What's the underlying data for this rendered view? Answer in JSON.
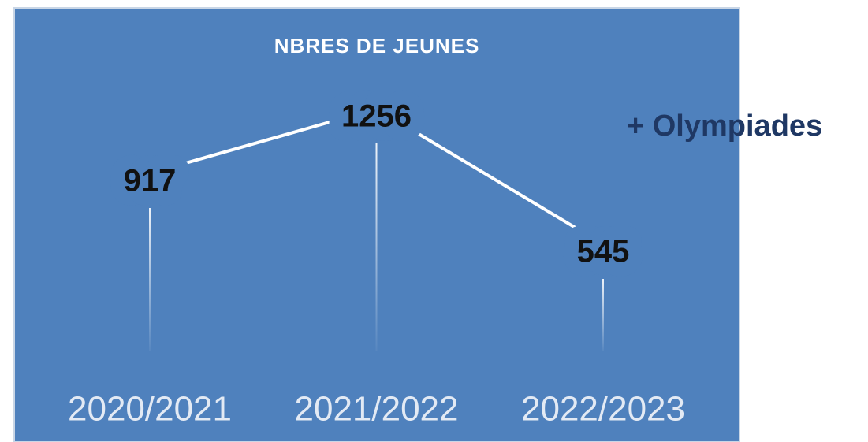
{
  "chart_data": {
    "type": "line",
    "title": "NBRES DE JEUNES",
    "categories": [
      "2020/2021",
      "2021/2022",
      "2022/2023"
    ],
    "values": [
      917,
      1256,
      545
    ],
    "color": "#ffffff",
    "annotation": "+ Olympiades"
  }
}
